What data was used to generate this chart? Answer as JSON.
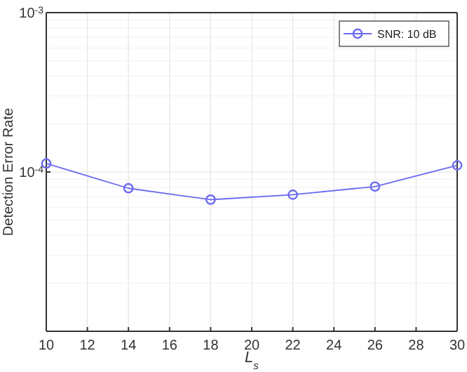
{
  "chart_data": {
    "type": "line",
    "xlabel": "L$_{s}$",
    "ylabel": "Detection Error Rate",
    "x": [
      10,
      14,
      18,
      22,
      26,
      30
    ],
    "series": [
      {
        "name": "SNR: 10 dB",
        "color": "#6a6af0",
        "values": [
          0.000113,
          7.9e-05,
          6.7e-05,
          7.2e-05,
          8.1e-05,
          0.00011
        ]
      }
    ],
    "xlim": [
      10,
      30
    ],
    "xticks": [
      10,
      12,
      14,
      16,
      18,
      20,
      22,
      24,
      26,
      28,
      30
    ],
    "ylim": [
      1e-05,
      0.001
    ],
    "yticks": [
      {
        "value": 0.001,
        "label": "10$^{-3}$"
      },
      {
        "value": 0.0001,
        "label": "10$^{-4}$"
      }
    ],
    "log": "y",
    "grid": true,
    "legend": "top right",
    "marker": "circle",
    "line_style": "solid"
  }
}
